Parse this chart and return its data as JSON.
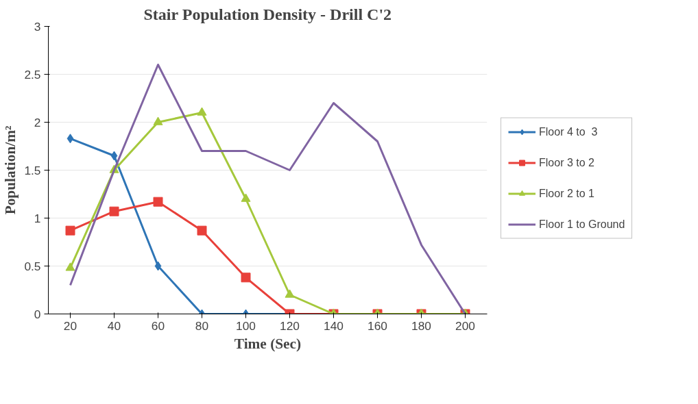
{
  "chart_data": {
    "type": "line",
    "title": "Stair Population Density - Drill C'2",
    "xlabel": "Time (Sec)",
    "ylabel": "Population/m²",
    "categories": [
      "20",
      "40",
      "60",
      "80",
      "100",
      "120",
      "140",
      "160",
      "180",
      "200"
    ],
    "series": [
      {
        "name": "Floor 4 to  3",
        "color": "#2e75b6",
        "marker": "diamond",
        "values": [
          1.83,
          1.65,
          0.5,
          0,
          0,
          0,
          null,
          null,
          null,
          null
        ]
      },
      {
        "name": "Floor 3 to 2",
        "color": "#e8403a",
        "marker": "square",
        "values": [
          0.87,
          1.07,
          1.17,
          0.87,
          0.38,
          0,
          0,
          0,
          0,
          0
        ]
      },
      {
        "name": "Floor 2 to 1",
        "color": "#a5c83c",
        "marker": "triangle",
        "values": [
          0.48,
          1.5,
          2.0,
          2.1,
          1.2,
          0.2,
          0,
          0,
          0,
          0
        ]
      },
      {
        "name": "Floor 1 to Ground",
        "color": "#8064a2",
        "marker": "none",
        "values": [
          0.3,
          1.5,
          2.6,
          1.7,
          1.7,
          1.5,
          2.2,
          1.8,
          0.72,
          0
        ]
      }
    ],
    "ylim": [
      0,
      3
    ],
    "yticks": [
      0,
      0.5,
      1,
      1.5,
      2,
      2.5,
      3
    ],
    "grid": "y",
    "legend": "right",
    "line_style": "solid"
  }
}
